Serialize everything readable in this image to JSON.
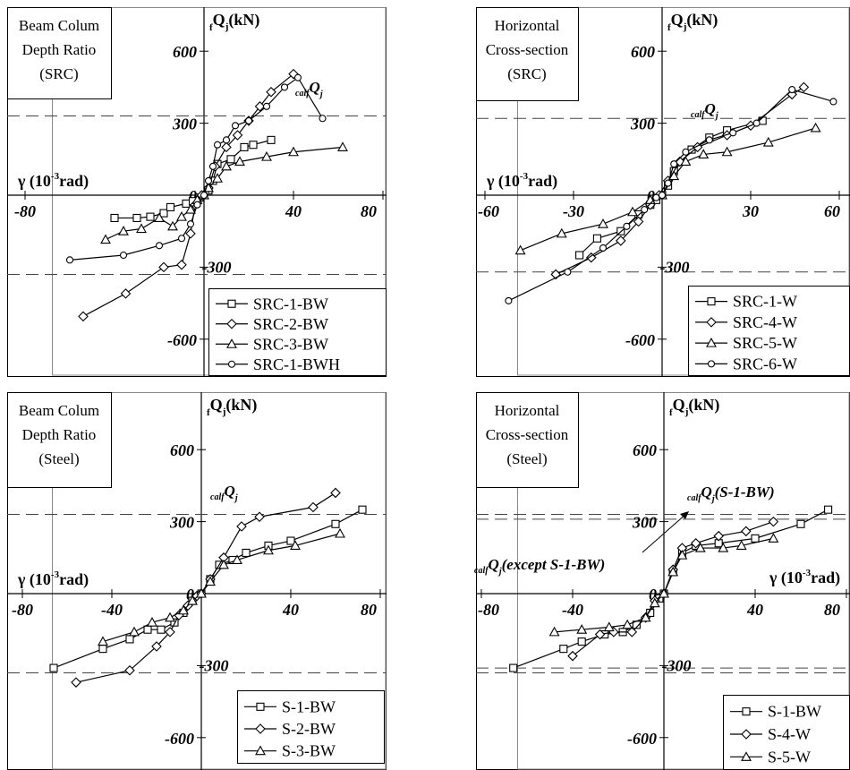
{
  "chart_data": [
    {
      "type": "line",
      "title_box": [
        "Beam Colum",
        "Depth Ratio",
        "(SRC)"
      ],
      "ylabel": "Q",
      "ylabel_pre": "f",
      "ylabel_sub": "j",
      "ylabel_unit": "(kN)",
      "xlabel": "γ (10",
      "xlabel_sup": "-3",
      "xlabel_unit": "rad)",
      "ref_label_pre": "calf",
      "ref_label": "Q",
      "ref_label_sub": "j",
      "xlim": [
        -80,
        80
      ],
      "ylim": [
        -700,
        700
      ],
      "ref_line": 330,
      "xticks": [
        -80,
        40,
        80
      ],
      "xtick_labels": [
        "-80",
        "40",
        "80"
      ],
      "yticks": [
        600,
        300,
        0,
        -600
      ],
      "ytick_labels": [
        "600",
        "300",
        "0",
        "-600"
      ],
      "y300neg_label": "-300",
      "legend_position": "bottom-right",
      "series": [
        {
          "name": "SRC-1-BW",
          "marker": "square",
          "points": [
            [
              -40,
              -95
            ],
            [
              -30,
              -95
            ],
            [
              -24,
              -90
            ],
            [
              -18,
              -75
            ],
            [
              -15,
              -50
            ],
            [
              -8,
              -35
            ],
            [
              -5,
              -25
            ],
            [
              -2,
              -10
            ],
            [
              0,
              0
            ],
            [
              2,
              20
            ],
            [
              4,
              60
            ],
            [
              6,
              130
            ],
            [
              12,
              150
            ],
            [
              18,
              200
            ],
            [
              22,
              210
            ],
            [
              30,
              230
            ]
          ]
        },
        {
          "name": "SRC-2-BW",
          "marker": "diamond",
          "points": [
            [
              -54,
              -505
            ],
            [
              -35,
              -410
            ],
            [
              -18,
              -300
            ],
            [
              -10,
              -290
            ],
            [
              -6,
              -160
            ],
            [
              -4,
              -40
            ],
            [
              -1,
              0
            ],
            [
              2,
              30
            ],
            [
              5,
              120
            ],
            [
              10,
              200
            ],
            [
              15,
              250
            ],
            [
              20,
              310
            ],
            [
              25,
              370
            ],
            [
              30,
              430
            ],
            [
              40,
              505
            ]
          ]
        },
        {
          "name": "SRC-3-BW",
          "marker": "triangle",
          "points": [
            [
              -44,
              -185
            ],
            [
              -36,
              -150
            ],
            [
              -28,
              -140
            ],
            [
              -20,
              -95
            ],
            [
              -14,
              -130
            ],
            [
              -10,
              -90
            ],
            [
              -6,
              -60
            ],
            [
              -3,
              -20
            ],
            [
              0,
              0
            ],
            [
              2,
              30
            ],
            [
              6,
              70
            ],
            [
              10,
              120
            ],
            [
              16,
              140
            ],
            [
              28,
              160
            ],
            [
              40,
              180
            ],
            [
              62,
              200
            ]
          ]
        },
        {
          "name": "SRC-1-BWH",
          "marker": "circle",
          "points": [
            [
              -60,
              -270
            ],
            [
              -36,
              -250
            ],
            [
              -20,
              -210
            ],
            [
              -10,
              -180
            ],
            [
              -6,
              -120
            ],
            [
              -3,
              -40
            ],
            [
              0,
              0
            ],
            [
              2,
              60
            ],
            [
              4,
              120
            ],
            [
              6,
              210
            ],
            [
              10,
              230
            ],
            [
              14,
              290
            ],
            [
              20,
              310
            ],
            [
              28,
              370
            ],
            [
              36,
              450
            ],
            [
              42,
              490
            ],
            [
              53,
              320
            ]
          ]
        }
      ]
    },
    {
      "type": "line",
      "title_box": [
        "Horizontal",
        "Cross-section",
        "(SRC)"
      ],
      "ylabel": "Q",
      "ylabel_pre": "f",
      "ylabel_sub": "j",
      "ylabel_unit": "(kN)",
      "xlabel": "γ (10",
      "xlabel_sup": "-3",
      "xlabel_unit": "rad)",
      "ref_label_pre": "calf",
      "ref_label": "Q",
      "ref_label_sub": "j",
      "xlim": [
        -60,
        60
      ],
      "ylim": [
        -700,
        700
      ],
      "ref_line": 320,
      "xticks": [
        -60,
        -30,
        30,
        60
      ],
      "xtick_labels": [
        "-60",
        "-30",
        "30",
        "60"
      ],
      "yticks": [
        600,
        300,
        0,
        -600
      ],
      "ytick_labels": [
        "600",
        "300",
        "0",
        "-600"
      ],
      "y300neg_label": "-300",
      "legend_position": "bottom-right",
      "series": [
        {
          "name": "SRC-1-W",
          "marker": "square",
          "points": [
            [
              -28,
              -250
            ],
            [
              -22,
              -180
            ],
            [
              -14,
              -150
            ],
            [
              -8,
              -80
            ],
            [
              -4,
              -40
            ],
            [
              -2,
              -20
            ],
            [
              0,
              0
            ],
            [
              2,
              40
            ],
            [
              4,
              100
            ],
            [
              10,
              190
            ],
            [
              16,
              240
            ],
            [
              22,
              270
            ],
            [
              34,
              310
            ]
          ]
        },
        {
          "name": "SRC-4-W",
          "marker": "diamond",
          "points": [
            [
              -36,
              -330
            ],
            [
              -24,
              -260
            ],
            [
              -14,
              -190
            ],
            [
              -8,
              -110
            ],
            [
              -4,
              -40
            ],
            [
              -1,
              0
            ],
            [
              2,
              60
            ],
            [
              6,
              140
            ],
            [
              12,
              200
            ],
            [
              22,
              250
            ],
            [
              30,
              290
            ],
            [
              44,
              420
            ],
            [
              48,
              450
            ]
          ]
        },
        {
          "name": "SRC-5-W",
          "marker": "triangle",
          "points": [
            [
              -48,
              -230
            ],
            [
              -34,
              -160
            ],
            [
              -20,
              -120
            ],
            [
              -10,
              -70
            ],
            [
              -4,
              -20
            ],
            [
              0,
              0
            ],
            [
              4,
              80
            ],
            [
              8,
              140
            ],
            [
              14,
              170
            ],
            [
              22,
              180
            ],
            [
              36,
              220
            ],
            [
              52,
              280
            ]
          ]
        },
        {
          "name": "SRC-6-W",
          "marker": "circle",
          "points": [
            [
              -52,
              -440
            ],
            [
              -32,
              -320
            ],
            [
              -20,
              -220
            ],
            [
              -12,
              -130
            ],
            [
              -6,
              -60
            ],
            [
              -2,
              -10
            ],
            [
              0,
              0
            ],
            [
              2,
              50
            ],
            [
              4,
              130
            ],
            [
              8,
              180
            ],
            [
              16,
              230
            ],
            [
              24,
              260
            ],
            [
              32,
              300
            ],
            [
              44,
              440
            ],
            [
              58,
              390
            ]
          ]
        }
      ]
    },
    {
      "type": "line",
      "title_box": [
        "Beam Colum",
        "Depth Ratio",
        "(Steel)"
      ],
      "ylabel": "Q",
      "ylabel_pre": "f",
      "ylabel_sub": "j",
      "ylabel_unit": "(kN)",
      "xlabel": "γ (10",
      "xlabel_sup": "-3",
      "xlabel_unit": "rad)",
      "ref_label_pre": "calf",
      "ref_label": "Q",
      "ref_label_sub": "j",
      "xlim": [
        -80,
        80
      ],
      "ylim": [
        -700,
        700
      ],
      "ref_line": 330,
      "xticks": [
        -80,
        -40,
        40,
        80
      ],
      "xtick_labels": [
        "-80",
        "-40",
        "40",
        "80"
      ],
      "yticks": [
        600,
        300,
        0,
        -600
      ],
      "ytick_labels": [
        "600",
        "300",
        "0",
        "-600"
      ],
      "y300neg_label": "-300",
      "legend_position": "bottom-right",
      "series": [
        {
          "name": "S-1-BW",
          "marker": "square",
          "points": [
            [
              -66,
              -310
            ],
            [
              -44,
              -230
            ],
            [
              -32,
              -190
            ],
            [
              -24,
              -150
            ],
            [
              -18,
              -150
            ],
            [
              -12,
              -120
            ],
            [
              -8,
              -80
            ],
            [
              -4,
              -30
            ],
            [
              0,
              0
            ],
            [
              4,
              60
            ],
            [
              8,
              120
            ],
            [
              14,
              140
            ],
            [
              20,
              170
            ],
            [
              30,
              200
            ],
            [
              40,
              220
            ],
            [
              60,
              290
            ],
            [
              72,
              350
            ]
          ]
        },
        {
          "name": "S-2-BW",
          "marker": "diamond",
          "points": [
            [
              -56,
              -370
            ],
            [
              -32,
              -320
            ],
            [
              -20,
              -220
            ],
            [
              -14,
              -160
            ],
            [
              -10,
              -90
            ],
            [
              -6,
              -50
            ],
            [
              -2,
              -10
            ],
            [
              0,
              0
            ],
            [
              4,
              60
            ],
            [
              10,
              150
            ],
            [
              18,
              280
            ],
            [
              26,
              320
            ],
            [
              50,
              360
            ],
            [
              60,
              420
            ]
          ]
        },
        {
          "name": "S-3-BW",
          "marker": "triangle",
          "points": [
            [
              -44,
              -200
            ],
            [
              -30,
              -160
            ],
            [
              -22,
              -120
            ],
            [
              -14,
              -100
            ],
            [
              -8,
              -70
            ],
            [
              -4,
              -30
            ],
            [
              0,
              0
            ],
            [
              4,
              50
            ],
            [
              10,
              120
            ],
            [
              16,
              140
            ],
            [
              30,
              180
            ],
            [
              42,
              200
            ],
            [
              62,
              250
            ]
          ]
        }
      ]
    },
    {
      "type": "line",
      "title_box": [
        "Horizontal",
        "Cross-section",
        "(Steel)"
      ],
      "ylabel": "Q",
      "ylabel_pre": "f",
      "ylabel_sub": "j",
      "ylabel_unit": "(kN)",
      "xlabel": "γ (10",
      "xlabel_sup": "-3",
      "xlabel_unit": "rad)",
      "ref_label_pre": "calf",
      "ref_label": "Q",
      "ref_label_sub": "j",
      "ref_label_suffix": "(S-1-BW)",
      "ref_label2_pre": "calf",
      "ref_label2": "Q",
      "ref_label2_sub": "j",
      "ref_label2_suffix": "(except S-1-BW)",
      "xlim": [
        -80,
        80
      ],
      "ylim": [
        -700,
        700
      ],
      "ref_lines": [
        330,
        310
      ],
      "xticks": [
        -80,
        -40,
        40,
        80
      ],
      "xtick_labels": [
        "-80",
        "-40",
        "40",
        "80"
      ],
      "yticks": [
        600,
        300,
        0,
        -600
      ],
      "ytick_labels": [
        "600",
        "300",
        "0",
        "-600"
      ],
      "y300neg_label": "-300",
      "legend_position": "bottom-right",
      "series": [
        {
          "name": "S-1-BW",
          "marker": "square",
          "points": [
            [
              -66,
              -310
            ],
            [
              -44,
              -230
            ],
            [
              -36,
              -200
            ],
            [
              -26,
              -170
            ],
            [
              -18,
              -160
            ],
            [
              -12,
              -130
            ],
            [
              -6,
              -80
            ],
            [
              -2,
              -20
            ],
            [
              0,
              0
            ],
            [
              4,
              90
            ],
            [
              8,
              170
            ],
            [
              14,
              200
            ],
            [
              24,
              210
            ],
            [
              40,
              230
            ],
            [
              60,
              290
            ],
            [
              72,
              350
            ]
          ]
        },
        {
          "name": "S-4-W",
          "marker": "diamond",
          "points": [
            [
              -40,
              -260
            ],
            [
              -28,
              -170
            ],
            [
              -22,
              -160
            ],
            [
              -14,
              -160
            ],
            [
              -8,
              -100
            ],
            [
              -4,
              -30
            ],
            [
              0,
              0
            ],
            [
              4,
              100
            ],
            [
              8,
              190
            ],
            [
              14,
              210
            ],
            [
              24,
              240
            ],
            [
              36,
              260
            ],
            [
              48,
              300
            ]
          ]
        },
        {
          "name": "S-5-W",
          "marker": "triangle",
          "points": [
            [
              -48,
              -160
            ],
            [
              -36,
              -150
            ],
            [
              -24,
              -140
            ],
            [
              -16,
              -130
            ],
            [
              -8,
              -100
            ],
            [
              -4,
              -40
            ],
            [
              0,
              0
            ],
            [
              4,
              90
            ],
            [
              8,
              160
            ],
            [
              16,
              190
            ],
            [
              26,
              190
            ],
            [
              34,
              200
            ],
            [
              48,
              230
            ]
          ]
        }
      ]
    }
  ]
}
